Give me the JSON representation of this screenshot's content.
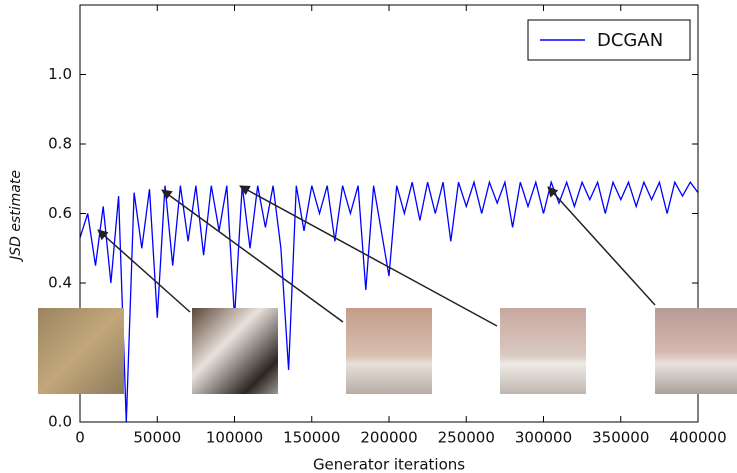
{
  "chart_data": {
    "type": "line",
    "x_label": "Generator iterations",
    "y_label": "JSD estimate",
    "xlim": [
      0,
      400000
    ],
    "ylim": [
      0,
      1.2
    ],
    "xticks": [
      0,
      50000,
      100000,
      150000,
      200000,
      250000,
      300000,
      350000,
      400000
    ],
    "yticks": [
      {
        "value": 0,
        "label": "0.0"
      },
      0.4,
      0.6,
      0.8,
      {
        "value": 1,
        "label": "1.0"
      }
    ],
    "legend_position": "upper right",
    "x": [
      0,
      5000,
      10000,
      15000,
      20000,
      25000,
      30000,
      35000,
      40000,
      45000,
      50000,
      55000,
      60000,
      65000,
      70000,
      75000,
      80000,
      85000,
      90000,
      95000,
      100000,
      105000,
      110000,
      115000,
      120000,
      125000,
      130000,
      135000,
      140000,
      145000,
      150000,
      155000,
      160000,
      165000,
      170000,
      175000,
      180000,
      185000,
      190000,
      195000,
      200000,
      205000,
      210000,
      215000,
      220000,
      225000,
      230000,
      235000,
      240000,
      245000,
      250000,
      255000,
      260000,
      265000,
      270000,
      275000,
      280000,
      285000,
      290000,
      295000,
      300000,
      305000,
      310000,
      315000,
      320000,
      325000,
      330000,
      335000,
      340000,
      345000,
      350000,
      355000,
      360000,
      365000,
      370000,
      375000,
      380000,
      385000,
      390000,
      395000,
      400000
    ],
    "series": [
      {
        "name": "DCGAN",
        "color": "#0000ff",
        "values": [
          0.53,
          0.6,
          0.45,
          0.62,
          0.4,
          0.65,
          0.0,
          0.66,
          0.5,
          0.67,
          0.3,
          0.68,
          0.45,
          0.68,
          0.52,
          0.68,
          0.48,
          0.68,
          0.55,
          0.68,
          0.3,
          0.68,
          0.5,
          0.68,
          0.56,
          0.68,
          0.5,
          0.15,
          0.68,
          0.55,
          0.68,
          0.6,
          0.68,
          0.52,
          0.68,
          0.6,
          0.68,
          0.38,
          0.68,
          0.55,
          0.42,
          0.68,
          0.6,
          0.69,
          0.58,
          0.69,
          0.6,
          0.69,
          0.52,
          0.69,
          0.62,
          0.69,
          0.6,
          0.69,
          0.63,
          0.69,
          0.56,
          0.69,
          0.62,
          0.69,
          0.6,
          0.69,
          0.63,
          0.69,
          0.62,
          0.69,
          0.64,
          0.69,
          0.6,
          0.69,
          0.64,
          0.69,
          0.62,
          0.69,
          0.64,
          0.69,
          0.6,
          0.69,
          0.65,
          0.69,
          0.66
        ]
      }
    ]
  }
}
